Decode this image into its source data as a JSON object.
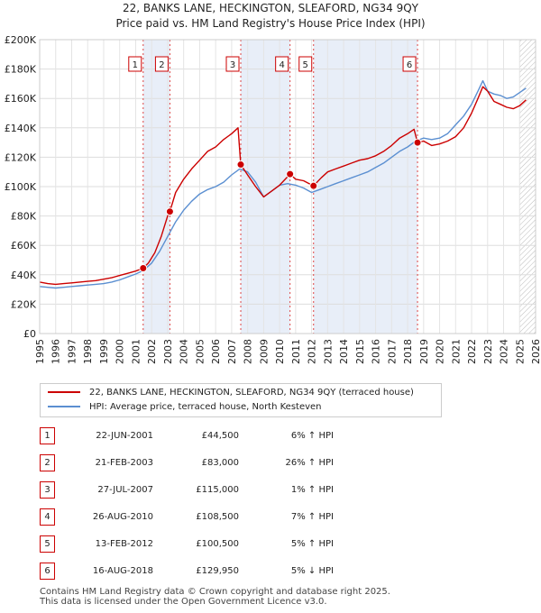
{
  "chart_data": {
    "type": "line",
    "title": "22, BANKS LANE, HECKINGTON, SLEAFORD, NG34 9QY",
    "subtitle": "Price paid vs. HM Land Registry's House Price Index (HPI)",
    "xlim": [
      1995,
      2026
    ],
    "ylim": [
      0,
      200000
    ],
    "y_ticks": [
      0,
      20000,
      40000,
      60000,
      80000,
      100000,
      120000,
      140000,
      160000,
      180000,
      200000
    ],
    "y_tick_labels": [
      "£0",
      "£20K",
      "£40K",
      "£60K",
      "£80K",
      "£100K",
      "£120K",
      "£140K",
      "£160K",
      "£180K",
      "£200K"
    ],
    "x_ticks": [
      1995,
      1996,
      1997,
      1998,
      1999,
      2000,
      2001,
      2002,
      2003,
      2004,
      2005,
      2006,
      2007,
      2008,
      2009,
      2010,
      2011,
      2012,
      2013,
      2014,
      2015,
      2016,
      2017,
      2018,
      2019,
      2020,
      2021,
      2022,
      2023,
      2024,
      2025,
      2026
    ],
    "x_tick_labels": [
      "1995",
      "1996",
      "1997",
      "1998",
      "1999",
      "2000",
      "2001",
      "2002",
      "2003",
      "2004",
      "2005",
      "2006",
      "2007",
      "2008",
      "2009",
      "2010",
      "2011",
      "2012",
      "2013",
      "2014",
      "2015",
      "2016",
      "2017",
      "2018",
      "2019",
      "2020",
      "2021",
      "2022",
      "2023",
      "2024",
      "2025",
      "2026"
    ],
    "shaded_ranges": [
      [
        2001.47,
        2003.14
      ],
      [
        2007.57,
        2010.65
      ],
      [
        2012.12,
        2018.62
      ]
    ],
    "future_hatch_from": 2025.0,
    "series": [
      {
        "name": "22, BANKS LANE, HECKINGTON, SLEAFORD, NG34 9QY (terraced house)",
        "color": "#cc0000",
        "x": [
          1995.0,
          1995.5,
          1996.0,
          1996.5,
          1997.0,
          1997.5,
          1998.0,
          1998.5,
          1999.0,
          1999.5,
          2000.0,
          2000.5,
          2001.0,
          2001.47,
          2001.8,
          2002.2,
          2002.6,
          2003.0,
          2003.14,
          2003.5,
          2004.0,
          2004.5,
          2005.0,
          2005.5,
          2006.0,
          2006.5,
          2007.0,
          2007.4,
          2007.57,
          2008.0,
          2008.5,
          2009.0,
          2009.5,
          2010.0,
          2010.65,
          2011.0,
          2011.5,
          2012.12,
          2012.6,
          2013.0,
          2013.5,
          2014.0,
          2014.5,
          2015.0,
          2015.5,
          2016.0,
          2016.5,
          2017.0,
          2017.5,
          2018.0,
          2018.4,
          2018.62,
          2019.0,
          2019.5,
          2020.0,
          2020.5,
          2021.0,
          2021.5,
          2022.0,
          2022.4,
          2022.7,
          2023.0,
          2023.4,
          2023.8,
          2024.2,
          2024.6,
          2025.0,
          2025.4
        ],
        "y": [
          35000,
          34000,
          33500,
          34000,
          34500,
          35000,
          35500,
          36000,
          37000,
          38000,
          39500,
          41000,
          42500,
          44500,
          48000,
          55000,
          66000,
          80000,
          83000,
          96000,
          105000,
          112000,
          118000,
          124000,
          127000,
          132000,
          136000,
          140000,
          115000,
          108000,
          100000,
          93000,
          97000,
          101000,
          108500,
          105000,
          104000,
          100500,
          106000,
          110000,
          112000,
          114000,
          116000,
          118000,
          119000,
          121000,
          124000,
          128000,
          133000,
          136000,
          139000,
          129950,
          131000,
          128000,
          129000,
          131000,
          134000,
          140000,
          150000,
          160000,
          168000,
          165000,
          158000,
          156000,
          154000,
          153000,
          155000,
          159000
        ]
      },
      {
        "name": "HPI: Average price, terraced house, North Kesteven",
        "color": "#5b8fd1",
        "x": [
          1995.0,
          1995.5,
          1996.0,
          1996.5,
          1997.0,
          1997.5,
          1998.0,
          1998.5,
          1999.0,
          1999.5,
          2000.0,
          2000.5,
          2001.0,
          2001.5,
          2002.0,
          2002.5,
          2003.0,
          2003.5,
          2004.0,
          2004.5,
          2005.0,
          2005.5,
          2006.0,
          2006.5,
          2007.0,
          2007.5,
          2008.0,
          2008.5,
          2009.0,
          2009.5,
          2010.0,
          2010.5,
          2011.0,
          2011.5,
          2012.0,
          2012.5,
          2013.0,
          2013.5,
          2014.0,
          2014.5,
          2015.0,
          2015.5,
          2016.0,
          2016.5,
          2017.0,
          2017.5,
          2018.0,
          2018.5,
          2019.0,
          2019.5,
          2020.0,
          2020.5,
          2021.0,
          2021.5,
          2022.0,
          2022.4,
          2022.7,
          2023.0,
          2023.4,
          2023.8,
          2024.2,
          2024.6,
          2025.0,
          2025.4
        ],
        "y": [
          32000,
          31500,
          31000,
          31500,
          32000,
          32500,
          33000,
          33500,
          34000,
          35000,
          36500,
          38500,
          40500,
          43000,
          48000,
          56000,
          66000,
          76000,
          84000,
          90000,
          95000,
          98000,
          100000,
          103000,
          108000,
          112000,
          110000,
          103000,
          93000,
          97000,
          101000,
          102000,
          101000,
          99000,
          96000,
          98000,
          100000,
          102000,
          104000,
          106000,
          108000,
          110000,
          113000,
          116000,
          120000,
          124000,
          127000,
          131000,
          133000,
          132000,
          133000,
          136000,
          142000,
          148000,
          156000,
          165000,
          172000,
          165000,
          163000,
          162000,
          160000,
          161000,
          164000,
          167000
        ]
      }
    ],
    "markers": [
      {
        "label": "1",
        "x": 2001.47,
        "y": 44500
      },
      {
        "label": "2",
        "x": 2003.14,
        "y": 83000
      },
      {
        "label": "3",
        "x": 2007.57,
        "y": 115000
      },
      {
        "label": "4",
        "x": 2010.65,
        "y": 108500
      },
      {
        "label": "5",
        "x": 2012.12,
        "y": 100500
      },
      {
        "label": "6",
        "x": 2018.62,
        "y": 129950
      }
    ]
  },
  "legend": {
    "red_label": "22, BANKS LANE, HECKINGTON, SLEAFORD, NG34 9QY (terraced house)",
    "blue_label": "HPI: Average price, terraced house, North Kesteven",
    "red_color": "#cc0000",
    "blue_color": "#5b8fd1"
  },
  "transactions": [
    {
      "num": "1",
      "date": "22-JUN-2001",
      "price": "£44,500",
      "hpi": "6% ↑ HPI"
    },
    {
      "num": "2",
      "date": "21-FEB-2003",
      "price": "£83,000",
      "hpi": "26% ↑ HPI"
    },
    {
      "num": "3",
      "date": "27-JUL-2007",
      "price": "£115,000",
      "hpi": "1% ↑ HPI"
    },
    {
      "num": "4",
      "date": "26-AUG-2010",
      "price": "£108,500",
      "hpi": "7% ↑ HPI"
    },
    {
      "num": "5",
      "date": "13-FEB-2012",
      "price": "£100,500",
      "hpi": "5% ↑ HPI"
    },
    {
      "num": "6",
      "date": "16-AUG-2018",
      "price": "£129,950",
      "hpi": "5% ↓ HPI"
    }
  ],
  "footer": {
    "line1": "Contains HM Land Registry data © Crown copyright and database right 2025.",
    "line2": "This data is licensed under the Open Government Licence v3.0."
  }
}
